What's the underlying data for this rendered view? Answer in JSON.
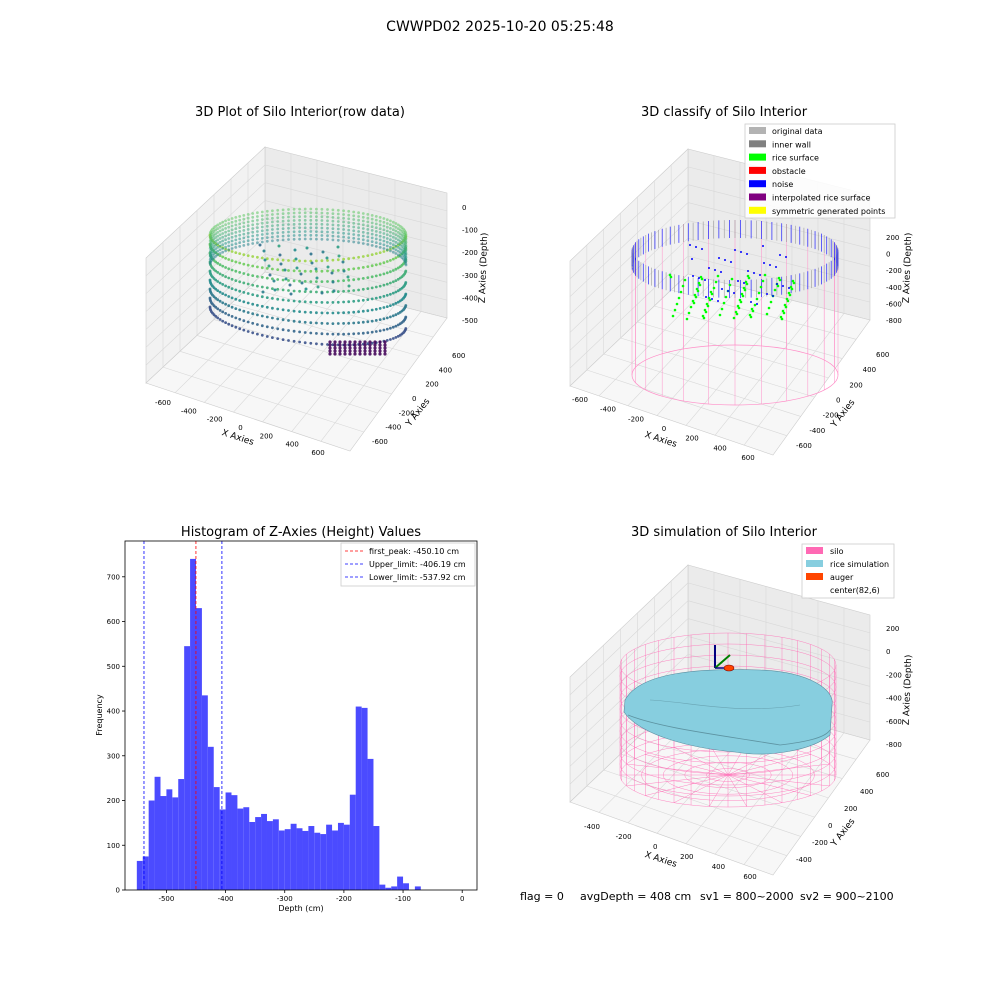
{
  "figure": {
    "suptitle": "CWWPD02 2025-10-20 05:25:48",
    "footer": {
      "flag": "flag = 0",
      "avg_depth": "avgDepth = 408 cm",
      "sv1": "sv1 = 800~2000",
      "sv2": "sv2 = 900~2100"
    }
  },
  "chart_data": [
    {
      "type": "scatter",
      "projection": "3d",
      "title": "3D Plot of Silo Interior(row data)",
      "xlabel": "X Axies",
      "ylabel": "Y Axies",
      "zlabel": "Z Axies (Depth)",
      "x_ticks": [
        -600,
        -400,
        -200,
        0,
        200,
        400,
        600
      ],
      "y_ticks": [
        -600,
        -400,
        -200,
        0,
        200,
        400,
        600
      ],
      "z_ticks": [
        -500,
        -400,
        -300,
        -200,
        -100,
        0
      ],
      "colormap": "viridis",
      "grid": true
    },
    {
      "type": "scatter",
      "projection": "3d",
      "title": "3D classify of Silo Interior",
      "xlabel": "X Axies",
      "ylabel": "Y Axies",
      "zlabel": "Z Axies (Depth)",
      "x_ticks": [
        -600,
        -400,
        -200,
        0,
        200,
        400,
        600
      ],
      "y_ticks": [
        -600,
        -400,
        -200,
        0,
        200,
        400,
        600
      ],
      "z_ticks": [
        -800,
        -600,
        -400,
        -200,
        0,
        200
      ],
      "grid": true,
      "legend_position": "top-right",
      "legend": [
        {
          "label": "original data",
          "color": "#b3b3b3"
        },
        {
          "label": "inner wall",
          "color": "#808080"
        },
        {
          "label": "rice surface",
          "color": "#00ff00"
        },
        {
          "label": "obstacle",
          "color": "#ff0000"
        },
        {
          "label": "noise",
          "color": "#0000ff"
        },
        {
          "label": "interpolated rice surface",
          "color": "#800080"
        },
        {
          "label": "symmetric generated points",
          "color": "#ffff00"
        }
      ]
    },
    {
      "type": "bar",
      "title": "Histogram of Z-Axies (Height) Values",
      "xlabel": "Depth (cm)",
      "ylabel": "Frequency",
      "xlim": [
        -570,
        25
      ],
      "ylim": [
        0,
        780
      ],
      "x_ticks": [
        -500,
        -400,
        -300,
        -200,
        -100,
        0
      ],
      "y_ticks": [
        0,
        100,
        200,
        300,
        400,
        500,
        600,
        700
      ],
      "bar_color": "#4b4bff",
      "bin_width": 10,
      "bins": [
        {
          "x": -550,
          "count": 65
        },
        {
          "x": -540,
          "count": 75
        },
        {
          "x": -530,
          "count": 200
        },
        {
          "x": -520,
          "count": 253
        },
        {
          "x": -510,
          "count": 210
        },
        {
          "x": -500,
          "count": 225
        },
        {
          "x": -490,
          "count": 207
        },
        {
          "x": -480,
          "count": 248
        },
        {
          "x": -470,
          "count": 545
        },
        {
          "x": -460,
          "count": 740
        },
        {
          "x": -450,
          "count": 630
        },
        {
          "x": -440,
          "count": 435
        },
        {
          "x": -430,
          "count": 320
        },
        {
          "x": -420,
          "count": 230
        },
        {
          "x": -410,
          "count": 180
        },
        {
          "x": -400,
          "count": 218
        },
        {
          "x": -390,
          "count": 212
        },
        {
          "x": -380,
          "count": 182
        },
        {
          "x": -370,
          "count": 185
        },
        {
          "x": -360,
          "count": 152
        },
        {
          "x": -350,
          "count": 163
        },
        {
          "x": -340,
          "count": 170
        },
        {
          "x": -330,
          "count": 154
        },
        {
          "x": -320,
          "count": 158
        },
        {
          "x": -310,
          "count": 133
        },
        {
          "x": -300,
          "count": 136
        },
        {
          "x": -290,
          "count": 148
        },
        {
          "x": -280,
          "count": 138
        },
        {
          "x": -270,
          "count": 132
        },
        {
          "x": -260,
          "count": 143
        },
        {
          "x": -250,
          "count": 128
        },
        {
          "x": -240,
          "count": 125
        },
        {
          "x": -230,
          "count": 146
        },
        {
          "x": -220,
          "count": 133
        },
        {
          "x": -210,
          "count": 150
        },
        {
          "x": -200,
          "count": 146
        },
        {
          "x": -190,
          "count": 213
        },
        {
          "x": -180,
          "count": 410
        },
        {
          "x": -170,
          "count": 407
        },
        {
          "x": -160,
          "count": 293
        },
        {
          "x": -150,
          "count": 143
        },
        {
          "x": -140,
          "count": 12
        },
        {
          "x": -130,
          "count": 5
        },
        {
          "x": -120,
          "count": 8
        },
        {
          "x": -110,
          "count": 30
        },
        {
          "x": -100,
          "count": 15
        },
        {
          "x": -90,
          "count": 0
        },
        {
          "x": -80,
          "count": 8
        }
      ],
      "reference_lines": [
        {
          "x": -450.1,
          "label": "first_peak: -450.10 cm",
          "color": "#ff0000"
        },
        {
          "x": -406.19,
          "label": "Upper_limit: -406.19 cm",
          "color": "#0000ff"
        },
        {
          "x": -537.92,
          "label": "Lower_limit: -537.92 cm",
          "color": "#0000ff"
        }
      ],
      "legend_position": "top-right"
    },
    {
      "type": "scatter",
      "projection": "3d",
      "title": "3D simulation of Silo Interior",
      "xlabel": "X Axies",
      "ylabel": "Y Axies",
      "zlabel": "Z Axies (Depth)",
      "x_ticks": [
        -400,
        -200,
        0,
        200,
        400,
        600
      ],
      "y_ticks": [
        -400,
        -200,
        0,
        200,
        400,
        600
      ],
      "z_ticks": [
        -800,
        -600,
        -400,
        -200,
        0,
        200
      ],
      "grid": true,
      "legend_position": "top-right",
      "legend": [
        {
          "label": "silo",
          "color": "#ff69b4"
        },
        {
          "label": "rice simulation",
          "color": "#87cedf"
        },
        {
          "label": "auger",
          "color": "#ff4500"
        },
        {
          "label": "center(82,6)",
          "color": ""
        }
      ]
    }
  ]
}
